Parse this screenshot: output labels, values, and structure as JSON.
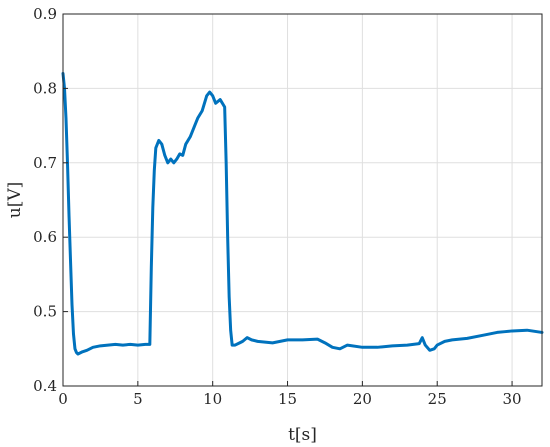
{
  "chart_data": {
    "type": "line",
    "title": "",
    "xlabel": "t[s]",
    "ylabel": "u[V]",
    "xlim": [
      0,
      32
    ],
    "ylim": [
      0.4,
      0.9
    ],
    "xticks": [
      0,
      5,
      10,
      15,
      20,
      25,
      30
    ],
    "yticks": [
      0.4,
      0.5,
      0.6,
      0.7,
      0.8,
      0.9
    ],
    "xtick_labels": [
      "0",
      "5",
      "10",
      "15",
      "20",
      "25",
      "30"
    ],
    "ytick_labels": [
      "0.4",
      "0.5",
      "0.6",
      "0.7",
      "0.8",
      "0.9"
    ],
    "grid": true,
    "line_color": "#0072BD",
    "series": [
      {
        "x": [
          0,
          0.1,
          0.2,
          0.3,
          0.4,
          0.5,
          0.6,
          0.7,
          0.8,
          0.9,
          1.0,
          1.3,
          1.6,
          2.0,
          2.5,
          3.0,
          3.5,
          4.0,
          4.5,
          5.0,
          5.5,
          5.8,
          5.9,
          6.0,
          6.1,
          6.2,
          6.4,
          6.6,
          6.8,
          7.0,
          7.2,
          7.4,
          7.6,
          7.8,
          8.0,
          8.2,
          8.5,
          8.8,
          9.0,
          9.3,
          9.6,
          9.8,
          10.0,
          10.2,
          10.5,
          10.8,
          10.9,
          11.0,
          11.1,
          11.2,
          11.3,
          11.5,
          11.8,
          12.0,
          12.3,
          12.6,
          13.0,
          14.0,
          15.0,
          16.0,
          17.0,
          17.5,
          18.0,
          18.5,
          19.0,
          20.0,
          21.0,
          22.0,
          23.0,
          23.8,
          24.0,
          24.2,
          24.5,
          24.8,
          25.0,
          25.5,
          26.0,
          27.0,
          28.0,
          29.0,
          29.5,
          30.0,
          31.0,
          32.0
        ],
        "y": [
          0.82,
          0.8,
          0.76,
          0.7,
          0.63,
          0.57,
          0.51,
          0.47,
          0.45,
          0.445,
          0.443,
          0.446,
          0.448,
          0.452,
          0.454,
          0.455,
          0.456,
          0.455,
          0.456,
          0.455,
          0.456,
          0.456,
          0.56,
          0.64,
          0.69,
          0.72,
          0.73,
          0.725,
          0.71,
          0.7,
          0.705,
          0.7,
          0.705,
          0.712,
          0.71,
          0.725,
          0.735,
          0.75,
          0.76,
          0.77,
          0.79,
          0.795,
          0.79,
          0.78,
          0.785,
          0.775,
          0.7,
          0.6,
          0.52,
          0.475,
          0.455,
          0.455,
          0.458,
          0.46,
          0.465,
          0.462,
          0.46,
          0.458,
          0.462,
          0.462,
          0.463,
          0.458,
          0.452,
          0.45,
          0.455,
          0.452,
          0.452,
          0.454,
          0.455,
          0.457,
          0.465,
          0.455,
          0.448,
          0.45,
          0.455,
          0.46,
          0.462,
          0.464,
          0.468,
          0.472,
          0.473,
          0.474,
          0.475,
          0.472
        ]
      }
    ]
  }
}
